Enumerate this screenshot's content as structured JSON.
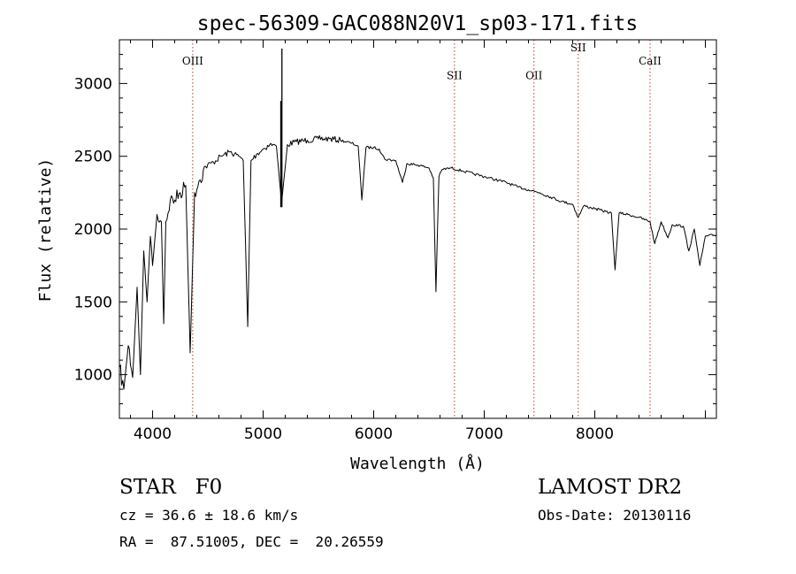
{
  "chart_data": {
    "type": "line",
    "title": "spec-56309-GAC088N20V1_sp03-171.fits",
    "xlabel": "Wavelength (Å)",
    "ylabel": "Flux (relative)",
    "xlim": [
      3700,
      9100
    ],
    "ylim": [
      700,
      3300
    ],
    "xticks_major": [
      4000,
      5000,
      6000,
      7000,
      8000
    ],
    "xticks_major_labels": [
      "4000",
      "5000",
      "6000",
      "7000",
      "8000"
    ],
    "yticks_major": [
      1000,
      1500,
      2000,
      2500,
      3000
    ],
    "yticks_major_labels": [
      "1000",
      "1500",
      "2000",
      "2500",
      "3000"
    ],
    "grid": false,
    "series": [
      {
        "color": "#000000",
        "x": [
          3700,
          3740,
          3780,
          3820,
          3860,
          3890,
          3920,
          3950,
          3980,
          4000,
          4040,
          4080,
          4101,
          4120,
          4160,
          4200,
          4250,
          4300,
          4340,
          4380,
          4420,
          4480,
          4550,
          4620,
          4700,
          4780,
          4820,
          4861,
          4890,
          4950,
          5000,
          5060,
          5120,
          5167,
          5220,
          5300,
          5400,
          5500,
          5600,
          5700,
          5800,
          5860,
          5893,
          5930,
          6000,
          6050,
          6100,
          6200,
          6260,
          6300,
          6400,
          6500,
          6540,
          6563,
          6590,
          6620,
          6700,
          6800,
          6900,
          7000,
          7100,
          7200,
          7300,
          7400,
          7500,
          7600,
          7700,
          7800,
          7850,
          7900,
          8000,
          8100,
          8150,
          8183,
          8220,
          8300,
          8400,
          8500,
          8542,
          8600,
          8662,
          8700,
          8800,
          8850,
          8900,
          8950,
          9000,
          9100
        ],
        "y": [
          1050,
          900,
          1200,
          980,
          1600,
          1000,
          1850,
          1500,
          1950,
          1750,
          2100,
          2050,
          1350,
          2050,
          2200,
          2200,
          2250,
          2300,
          1150,
          2250,
          2330,
          2430,
          2460,
          2500,
          2530,
          2500,
          2470,
          1330,
          2470,
          2520,
          2550,
          2580,
          2570,
          2180,
          2580,
          2600,
          2610,
          2620,
          2620,
          2610,
          2590,
          2570,
          2200,
          2560,
          2560,
          2550,
          2480,
          2470,
          2320,
          2450,
          2440,
          2420,
          2350,
          1570,
          2360,
          2410,
          2420,
          2400,
          2380,
          2360,
          2340,
          2320,
          2290,
          2270,
          2250,
          2220,
          2190,
          2170,
          2080,
          2160,
          2140,
          2120,
          2110,
          1720,
          2110,
          2100,
          2080,
          2050,
          1900,
          2050,
          1940,
          2030,
          2020,
          1850,
          2000,
          1750,
          1950,
          1960
        ]
      }
    ],
    "spikes": [
      {
        "x": 5170,
        "y": 3240
      },
      {
        "x": 5160,
        "y": 2880
      }
    ],
    "line_markers": [
      {
        "label": "OIII",
        "x": 4363,
        "label_y": 3130
      },
      {
        "label": "SII",
        "x": 6731,
        "label_y": 3030
      },
      {
        "label": "OII",
        "x": 7450,
        "label_y": 3030
      },
      {
        "label": "SII",
        "x": 7850,
        "label_y": 3220
      },
      {
        "label": "CaII",
        "x": 8500,
        "label_y": 3130
      }
    ]
  },
  "footer": {
    "object_line": "STAR   F0",
    "survey": "LAMOST DR2",
    "cz_line": "cz = 36.6 ± 18.6 km/s",
    "obs_date": "Obs-Date: 20130116",
    "radec_line": "RA =  87.51005, DEC =  20.26559"
  }
}
